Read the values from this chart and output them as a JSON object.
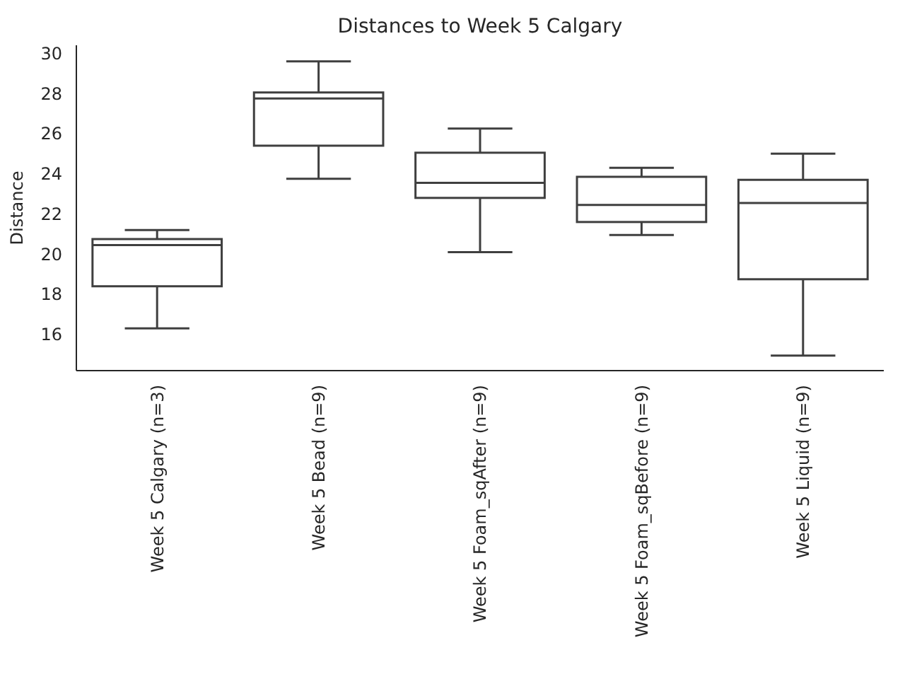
{
  "chart_data": {
    "type": "box",
    "title": "Distances to Week 5 Calgary",
    "ylabel": "Distance",
    "categories": [
      "Week 5 Calgary (n=3)",
      "Week 5 Bead (n=9)",
      "Week 5 Foam_sqAfter (n=9)",
      "Week 5 Foam_sqBefore (n=9)",
      "Week 5 Liquid (n=9)"
    ],
    "boxes": [
      {
        "low": 16.3,
        "q1": 18.4,
        "median": 20.45,
        "q3": 20.75,
        "high": 21.2
      },
      {
        "low": 23.75,
        "q1": 25.4,
        "median": 27.75,
        "q3": 28.05,
        "high": 29.6
      },
      {
        "low": 20.1,
        "q1": 22.8,
        "median": 23.55,
        "q3": 25.05,
        "high": 26.25
      },
      {
        "low": 20.95,
        "q1": 21.6,
        "median": 22.45,
        "q3": 23.85,
        "high": 24.3
      },
      {
        "low": 14.95,
        "q1": 18.75,
        "median": 22.55,
        "q3": 23.7,
        "high": 25.0
      }
    ],
    "color": "#3f3f3f",
    "ylim": [
      14.2,
      30.4
    ],
    "yticks": [
      16,
      18,
      20,
      22,
      24,
      26,
      28,
      30
    ],
    "grid": false
  }
}
